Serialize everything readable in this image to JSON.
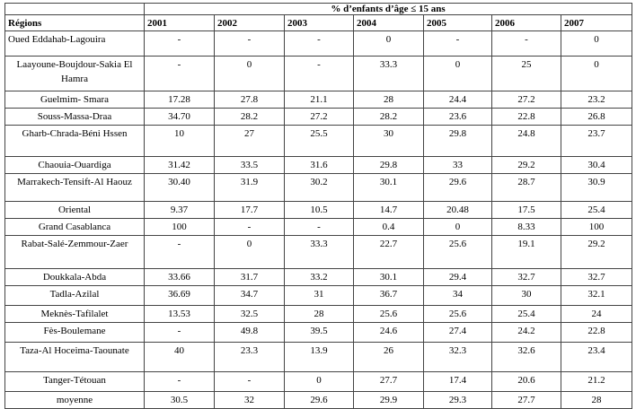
{
  "table": {
    "title": "% d’enfants d’âge ≤ 15 ans",
    "header": [
      "Régions",
      "2001",
      "2002",
      "2003",
      "2004",
      "2005",
      "2006",
      "2007"
    ],
    "rows": [
      [
        "Oued Eddahab-Lagouira",
        "-",
        "-",
        "-",
        "0",
        "-",
        "-",
        "0"
      ],
      [
        "Laayoune-Boujdour-Sakia El Hamra",
        "-",
        "0",
        "-",
        "33.3",
        "0",
        "25",
        "0"
      ],
      [
        "Guelmim- Smara",
        "17.28",
        "27.8",
        "21.1",
        "28",
        "24.4",
        "27.2",
        "23.2"
      ],
      [
        "Souss-Massa-Draa",
        "34.70",
        "28.2",
        "27.2",
        "28.2",
        "23.6",
        "22.8",
        "26.8"
      ],
      [
        "Gharb-Chrada-Béni Hssen",
        "10",
        "27",
        "25.5",
        "30",
        "29.8",
        "24.8",
        "23.7"
      ],
      [
        "Chaouia-Ouardiga",
        "31.42",
        "33.5",
        "31.6",
        "29.8",
        "33",
        "29.2",
        "30.4"
      ],
      [
        "Marrakech-Tensift-Al Haouz",
        "30.40",
        "31.9",
        "30.2",
        "30.1",
        "29.6",
        "28.7",
        "30.9"
      ],
      [
        "Oriental",
        "9.37",
        "17.7",
        "10.5",
        "14.7",
        "20.48",
        "17.5",
        "25.4"
      ],
      [
        "Grand Casablanca",
        "100",
        "-",
        "-",
        "0.4",
        "0",
        "8.33",
        "100"
      ],
      [
        "Rabat-Salé-Zemmour-Zaer",
        "-",
        "0",
        "33.3",
        "22.7",
        "25.6",
        "19.1",
        "29.2"
      ],
      [
        "Doukkala-Abda",
        "33.66",
        "31.7",
        "33.2",
        "30.1",
        "29.4",
        "32.7",
        "32.7"
      ],
      [
        "Tadla-Azilal",
        "36.69",
        "34.7",
        "31",
        "36.7",
        "34",
        "30",
        "32.1"
      ],
      [
        "Meknès-Tafilalet",
        "13.53",
        "32.5",
        "28",
        "25.6",
        "25.6",
        "25.4",
        "24"
      ],
      [
        "Fès-Boulemane",
        "-",
        "49.8",
        "39.5",
        "24.6",
        "27.4",
        "24.2",
        "22.8"
      ],
      [
        "Taza-Al Hoceima-Taounate",
        "40",
        "23.3",
        "13.9",
        "26",
        "32.3",
        "32.6",
        "23.4"
      ],
      [
        "Tanger-Tétouan",
        "-",
        "-",
        "0",
        "27.7",
        "17.4",
        "20.6",
        "21.2"
      ],
      [
        "moyenne",
        "30.5",
        "32",
        "29.6",
        "29.9",
        "29.3",
        "27.7",
        "28"
      ]
    ]
  }
}
